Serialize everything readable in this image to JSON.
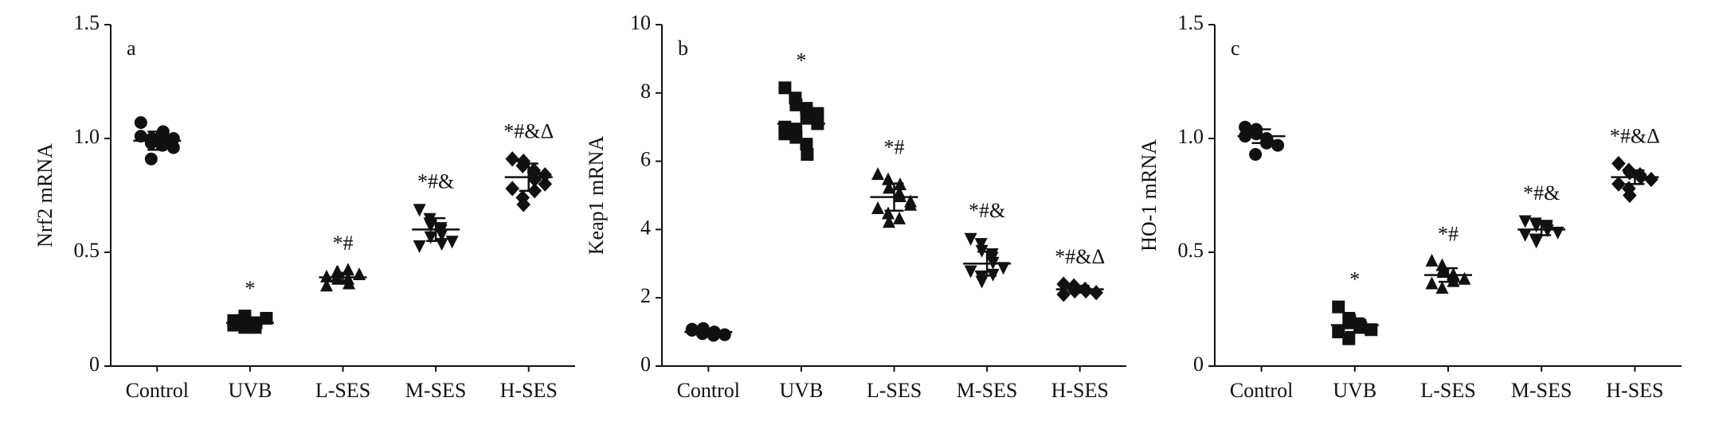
{
  "chart_data": [
    {
      "type": "dot",
      "panel": "a",
      "ylabel": "Nrf2 mRNA",
      "color": "#111111",
      "ylim": [
        0,
        1.5
      ],
      "yticks": [
        0,
        0.5,
        {
          "value": 1,
          "label": "1.0"
        },
        1.5
      ],
      "categories": [
        "Control",
        "UVB",
        "L-SES",
        "M-SES",
        "H-SES"
      ],
      "markers": [
        "circle",
        "square",
        "triangle-up",
        "triangle-down",
        "diamond"
      ],
      "groups": [
        {
          "points": [
            1.01,
            0.98,
            1.0,
            0.97,
            1.03,
            0.96,
            1.07,
            0.91,
            0.99,
            1.02,
            0.98,
            1.0
          ],
          "mean": 0.99,
          "sd": 0.04
        },
        {
          "points": [
            0.2,
            0.18,
            0.22,
            0.17,
            0.19,
            0.21,
            0.18,
            0.2,
            0.17,
            0.19
          ],
          "mean": 0.19,
          "sd": 0.02,
          "annotation": "*"
        },
        {
          "points": [
            0.39,
            0.41,
            0.38,
            0.42,
            0.36,
            0.4,
            0.35,
            0.39,
            0.41,
            0.38
          ],
          "mean": 0.39,
          "sd": 0.02,
          "annotation": "*#"
        },
        {
          "points": [
            0.69,
            0.65,
            0.62,
            0.6,
            0.58,
            0.55,
            0.53,
            0.63,
            0.57,
            0.61,
            0.54
          ],
          "mean": 0.6,
          "sd": 0.05,
          "annotation": "*#&"
        },
        {
          "points": [
            0.91,
            0.88,
            0.9,
            0.85,
            0.82,
            0.8,
            0.78,
            0.74,
            0.71,
            0.86,
            0.77,
            0.84
          ],
          "mean": 0.83,
          "sd": 0.06,
          "annotation": "*#&Δ"
        }
      ]
    },
    {
      "type": "dot",
      "panel": "b",
      "ylabel": "Keap1 mRNA",
      "color": "#111111",
      "ylim": [
        0,
        10
      ],
      "yticks": [
        0,
        2,
        4,
        6,
        8,
        10
      ],
      "categories": [
        "Control",
        "UVB",
        "L-SES",
        "M-SES",
        "H-SES"
      ],
      "markers": [
        "circle",
        "square",
        "triangle-up",
        "triangle-down",
        "diamond"
      ],
      "groups": [
        {
          "points": [
            1.05,
            0.95,
            1.1,
            0.9,
            1.0,
            0.92,
            1.08,
            0.97,
            1.02,
            0.94
          ],
          "mean": 1.0,
          "sd": 0.08
        },
        {
          "points": [
            8.15,
            7.85,
            7.65,
            7.55,
            7.3,
            7.1,
            7.0,
            6.9,
            6.7,
            6.5,
            6.2,
            7.4,
            6.8
          ],
          "mean": 7.1,
          "sd": 0.5,
          "annotation": "*"
        },
        {
          "points": [
            5.6,
            5.45,
            5.2,
            5.05,
            4.95,
            4.8,
            4.6,
            4.45,
            4.2,
            4.3,
            5.3,
            4.7
          ],
          "mean": 4.95,
          "sd": 0.4,
          "annotation": "*#"
        },
        {
          "points": [
            3.75,
            3.6,
            3.4,
            3.2,
            3.05,
            2.9,
            2.8,
            2.65,
            2.5,
            3.3,
            2.7
          ],
          "mean": 3.0,
          "sd": 0.35,
          "annotation": "*#&"
        },
        {
          "points": [
            2.4,
            2.35,
            2.3,
            2.25,
            2.2,
            2.15,
            2.1,
            2.3,
            2.2
          ],
          "mean": 2.25,
          "sd": 0.1,
          "annotation": "*#&Δ"
        }
      ]
    },
    {
      "type": "dot",
      "panel": "c",
      "ylabel": "HO-1 mRNA",
      "color": "#111111",
      "ylim": [
        0,
        1.5
      ],
      "yticks": [
        0,
        0.5,
        {
          "value": 1,
          "label": "1.0"
        },
        1.5
      ],
      "categories": [
        "Control",
        "UVB",
        "L-SES",
        "M-SES",
        "H-SES"
      ],
      "markers": [
        "circle",
        "square",
        "triangle-up",
        "triangle-down",
        "diamond"
      ],
      "groups": [
        {
          "points": [
            1.05,
            1.03,
            1.02,
            1.0,
            0.99,
            0.97,
            1.01,
            0.93,
            1.04,
            0.98
          ],
          "mean": 1.01,
          "sd": 0.03
        },
        {
          "points": [
            0.26,
            0.21,
            0.19,
            0.18,
            0.17,
            0.16,
            0.15,
            0.12,
            0.2,
            0.17
          ],
          "mean": 0.18,
          "sd": 0.03,
          "annotation": "*"
        },
        {
          "points": [
            0.46,
            0.44,
            0.42,
            0.4,
            0.39,
            0.38,
            0.36,
            0.34,
            0.41,
            0.37
          ],
          "mean": 0.4,
          "sd": 0.03,
          "annotation": "*#"
        },
        {
          "points": [
            0.64,
            0.63,
            0.62,
            0.61,
            0.6,
            0.59,
            0.58,
            0.56,
            0.55,
            0.62
          ],
          "mean": 0.6,
          "sd": 0.025,
          "annotation": "*#&"
        },
        {
          "points": [
            0.89,
            0.86,
            0.85,
            0.84,
            0.83,
            0.82,
            0.8,
            0.78,
            0.75,
            0.84
          ],
          "mean": 0.83,
          "sd": 0.03,
          "annotation": "*#&Δ"
        }
      ]
    }
  ]
}
